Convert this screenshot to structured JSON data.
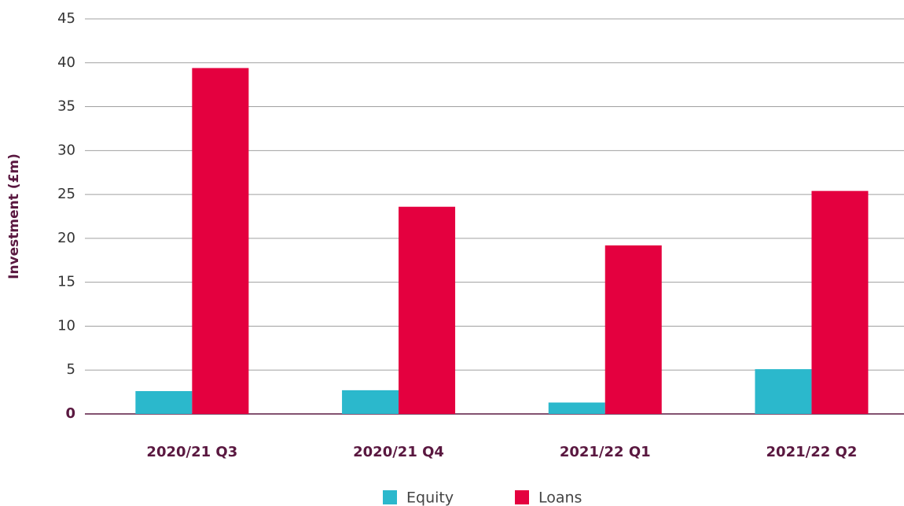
{
  "chart_data": {
    "type": "bar",
    "y_label": "Investment (£m)",
    "categories": [
      "2020/21 Q3",
      "2020/21 Q4",
      "2021/22 Q1",
      "2021/22 Q2"
    ],
    "series": [
      {
        "name": "Equity",
        "color": "#2bb8cc",
        "values": [
          2.6,
          2.7,
          1.3,
          5.1
        ]
      },
      {
        "name": "Loans",
        "color": "#e4003f",
        "values": [
          39.4,
          23.6,
          19.2,
          25.4
        ]
      }
    ],
    "ylim": [
      0,
      45
    ],
    "yticks": [
      0,
      5,
      10,
      15,
      20,
      25,
      30,
      35,
      40,
      45
    ],
    "grid": true
  }
}
